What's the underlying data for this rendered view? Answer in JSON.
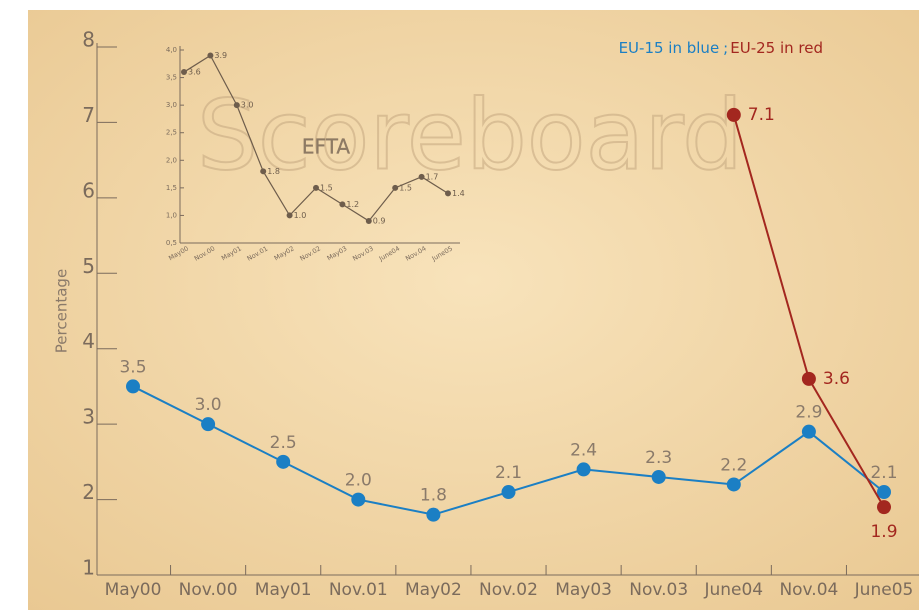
{
  "chart_data": [
    {
      "type": "line",
      "watermark": "Scoreboard",
      "y_label": "Percentage",
      "legend_separator": ";",
      "categories": [
        "May00",
        "Nov.00",
        "May01",
        "Nov.01",
        "May02",
        "Nov.02",
        "May03",
        "Nov.03",
        "June04",
        "Nov.04",
        "June05"
      ],
      "series": [
        {
          "name": "EU-15 in blue",
          "color": "#1b7fc4",
          "values": [
            3.5,
            3,
            2.5,
            2,
            1.8,
            2.1,
            2.4,
            2.3,
            2.2,
            2.9,
            2.1
          ],
          "value_labels": [
            "3.5",
            "3.0",
            "2.5",
            "2.0",
            "1.8",
            "2.1",
            "2.4",
            "2.3",
            "2.2",
            "2.9",
            "2.1"
          ]
        },
        {
          "name": "EU-25 in red",
          "color": "#a3271f",
          "values": [
            null,
            null,
            null,
            null,
            null,
            null,
            null,
            null,
            7.1,
            3.6,
            1.9
          ]
        }
      ],
      "ylim": [
        1,
        8
      ],
      "yticks": [
        1,
        2,
        3,
        4,
        5,
        6,
        7,
        8
      ]
    },
    {
      "type": "line",
      "title": "EFTA",
      "categories": [
        "May00",
        "Nov.00",
        "May01",
        "Nov.01",
        "May02",
        "Nov.02",
        "May03",
        "Nov.03",
        "June04",
        "Nov.04",
        "June05"
      ],
      "series": [
        {
          "color": "#6e5d4c",
          "values": [
            3.6,
            3.9,
            3,
            1.8,
            1,
            1.5,
            1.2,
            0.9,
            1.5,
            1.7,
            1.4
          ],
          "value_labels": [
            "3.6",
            "3.9",
            "3.0",
            "1.8",
            "1.0",
            "1.5",
            "1.2",
            "0.9",
            "1.5",
            "1.7",
            "1.4"
          ]
        }
      ],
      "ylim": [
        0.5,
        4
      ],
      "yticks": [
        {
          "value": 0.5,
          "label": "0,5"
        },
        {
          "value": 1,
          "label": "1,0"
        },
        {
          "value": 1.5,
          "label": "1,5"
        },
        {
          "value": 2,
          "label": "2,0"
        },
        {
          "value": 2.5,
          "label": "2,5"
        },
        {
          "value": 3,
          "label": "3,0"
        },
        {
          "value": 3.5,
          "label": "3,5"
        },
        {
          "value": 4,
          "label": "4,0"
        }
      ]
    }
  ]
}
